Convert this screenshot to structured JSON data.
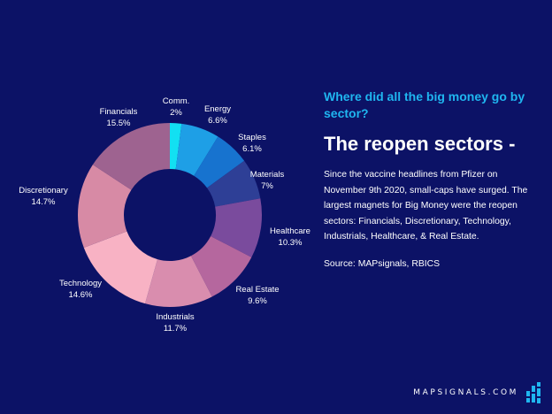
{
  "chart_data": {
    "type": "pie",
    "donut": true,
    "categories": [
      "Comm.",
      "Energy",
      "Staples",
      "Materials",
      "Healthcare",
      "Real Estate",
      "Industrials",
      "Technology",
      "Discretionary",
      "Financials"
    ],
    "values": [
      2,
      6.6,
      6.1,
      7,
      10.3,
      9.6,
      11.7,
      14.6,
      14.7,
      15.5
    ],
    "value_labels": [
      "2%",
      "6.6%",
      "6.1%",
      "7%",
      "10.3%",
      "9.6%",
      "11.7%",
      "14.6%",
      "14.7%",
      "15.5%"
    ],
    "colors": [
      "#12e0f2",
      "#1e9fe6",
      "#1773cf",
      "#2e3f96",
      "#7a4b9d",
      "#b5679e",
      "#d98dae",
      "#f8b2c4",
      "#d78aa5",
      "#9e6390"
    ]
  },
  "text": {
    "question": "Where did all the big money go by sector?",
    "headline": "The reopen sectors -",
    "body": "Since the vaccine headlines from Pfizer on November 9th 2020, small-caps have surged. The largest magnets for Big Money were the reopen sectors: Financials, Discretionary, Technology, Industrials, Healthcare, & Real Estate.",
    "source": "Source: MAPsignals, RBICS"
  },
  "brand": {
    "name": "MAPSIGNALS.COM",
    "logo_icon": "mapsignals-logo-icon",
    "accent_color": "#1fb6f0"
  },
  "background_color": "#0c1266"
}
